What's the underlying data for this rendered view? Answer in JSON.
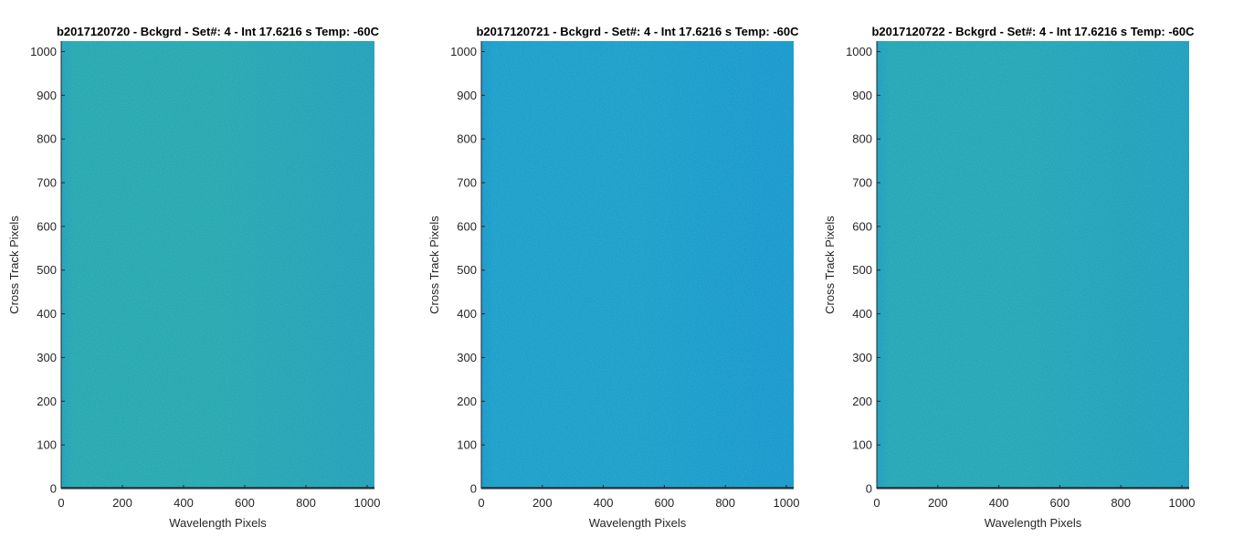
{
  "chart_data": [
    {
      "type": "heatmap",
      "title": "b2017120720 - Bckgrd - Set#: 4 - Int 17.6216 s Temp: -60C",
      "xlabel": "Wavelength Pixels",
      "ylabel": "Cross Track Pixels",
      "xlim": [
        0,
        1024
      ],
      "ylim": [
        0,
        1024
      ],
      "xticks": [
        0,
        200,
        400,
        600,
        800,
        1000
      ],
      "yticks": [
        0,
        100,
        200,
        300,
        400,
        500,
        600,
        700,
        800,
        900,
        1000
      ],
      "colors": {
        "base": "#20a6b6",
        "light": "#3fb3a0",
        "dark": "#1896c8"
      }
    },
    {
      "type": "heatmap",
      "title": "b2017120721 - Bckgrd - Set#: 4 - Int 17.6216 s Temp: -60C",
      "xlabel": "Wavelength Pixels",
      "ylabel": "Cross Track Pixels",
      "xlim": [
        0,
        1024
      ],
      "ylim": [
        0,
        1024
      ],
      "xticks": [
        0,
        200,
        400,
        600,
        800,
        1000
      ],
      "yticks": [
        0,
        100,
        200,
        300,
        400,
        500,
        600,
        700,
        800,
        900,
        1000
      ],
      "colors": {
        "base": "#149dd0",
        "light": "#22a8c2",
        "dark": "#0c8fd6"
      }
    },
    {
      "type": "heatmap",
      "title": "b2017120722 - Bckgrd - Set#: 4 - Int 17.6216 s Temp: -60C",
      "xlabel": "Wavelength Pixels",
      "ylabel": "Cross Track Pixels",
      "xlim": [
        0,
        1024
      ],
      "ylim": [
        0,
        1024
      ],
      "xticks": [
        0,
        200,
        400,
        600,
        800,
        1000
      ],
      "yticks": [
        0,
        100,
        200,
        300,
        400,
        500,
        600,
        700,
        800,
        900,
        1000
      ],
      "colors": {
        "base": "#1ea4bc",
        "light": "#35b0ac",
        "dark": "#1494cc"
      }
    }
  ]
}
